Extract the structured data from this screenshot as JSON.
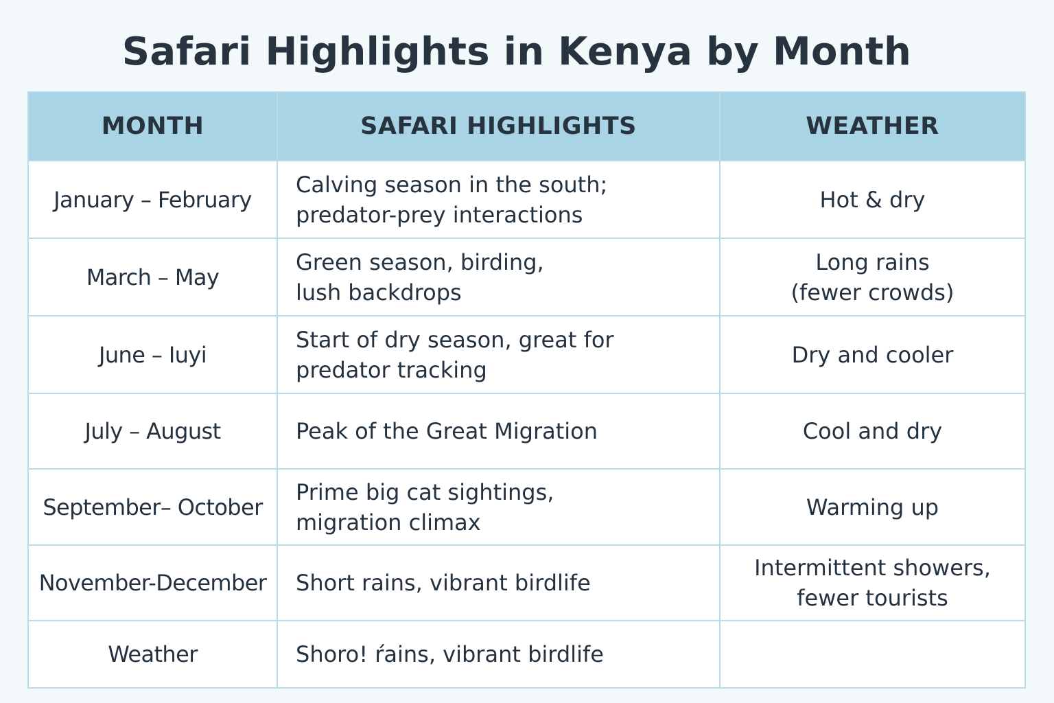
{
  "title": "Safari Highlights in Kenya by Month",
  "table": {
    "headers": [
      "MONTH",
      "SAFARI HIGHLIGHTS",
      "WEATHER"
    ],
    "rows": [
      {
        "month": "January – February",
        "highlights": "Calving season in the south;\npredator-prey interactions",
        "weather": "Hot & dry"
      },
      {
        "month": "March – May",
        "highlights": "Green season, birding,\nlush backdrops",
        "weather": "Long rains\n(fewer crowds)"
      },
      {
        "month": "June – Iuyi",
        "highlights": "Start of dry season, great for\npredator tracking",
        "weather": "Dry and cooler"
      },
      {
        "month": "July – August",
        "highlights": "Peak of the Great Migration",
        "weather": "Cool and dry"
      },
      {
        "month": "September– October",
        "highlights": "Prime big cat sightings,\nmigration climax",
        "weather": "Warming up"
      },
      {
        "month": "November-December",
        "highlights": "Short rains, vibrant birdlife",
        "weather": "Intermittent showers,\nfewer tourists"
      },
      {
        "month": "Weather",
        "highlights": "Shoro! ŕains, vibrant birdlife",
        "weather": ""
      }
    ]
  },
  "colors": {
    "background": "#f3f8fb",
    "header_fill": "#a8d4e6",
    "grid_line": "#b9dcea",
    "text": "#243240"
  }
}
